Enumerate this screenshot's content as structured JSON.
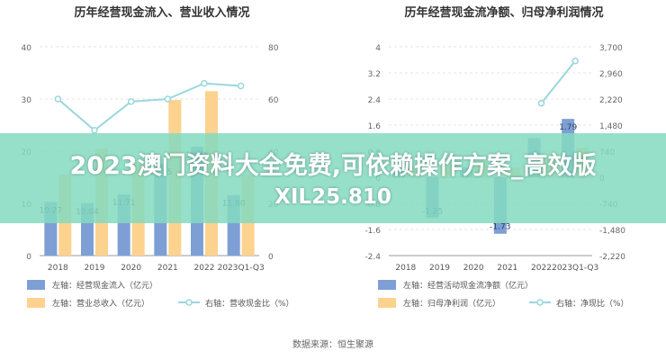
{
  "source_label": "数据来源：恒生聚源",
  "banner": {
    "line1": "2023澳门资料大全免费,可依赖操作方案_高效版",
    "line2": "XIL25.810"
  },
  "chart_data": [
    {
      "type": "bar",
      "title": "历年经营现金流入、营业收入情况",
      "categories": [
        "2018",
        "2019",
        "2020",
        "2021",
        "2022",
        "2023Q1-Q3"
      ],
      "left_axis": {
        "ylim": [
          0,
          40
        ],
        "ticks": [
          "0",
          "10",
          "20",
          "30",
          "40"
        ]
      },
      "right_axis": {
        "ylim": [
          0,
          80
        ],
        "ticks": [
          "0",
          "20",
          "40",
          "60",
          "80"
        ]
      },
      "series": [
        {
          "name": "左轴：经营现金流入（亿元）",
          "kind": "bar",
          "axis": "left",
          "color": "#7d9fd6",
          "values": [
            10.27,
            10.04,
            11.71,
            17.55,
            20.86,
            11.6
          ],
          "labels": [
            "10.27",
            "10.04",
            "11.71",
            "17.55",
            "20.86",
            "11.60"
          ]
        },
        {
          "name": "左轴：营业总收入（亿元）",
          "kind": "bar",
          "axis": "left",
          "color": "#fcd28e",
          "values": [
            15.5,
            20.5,
            17.5,
            29.8,
            31.5,
            15.5
          ]
        },
        {
          "name": "右轴：营收现金比（%）",
          "kind": "line",
          "axis": "right",
          "color": "#9ad7dc",
          "values": [
            60,
            48,
            59,
            60,
            66,
            65
          ]
        }
      ],
      "legend_position": "bottom"
    },
    {
      "type": "bar",
      "title": "历年经营现金流净额、归母净利润情况",
      "categories": [
        "2018",
        "2019",
        "2020",
        "2021",
        "2022",
        "2023Q1-Q3"
      ],
      "left_axis": {
        "ylim": [
          -2.4,
          4
        ],
        "ticks": [
          "-2.4",
          "-1.6",
          "-0.8",
          "0",
          "0.8",
          "1.6",
          "2.4",
          "3.2",
          "4"
        ]
      },
      "right_axis": {
        "ylim": [
          -2220,
          3700
        ],
        "ticks": [
          "-2,220",
          "-1,480",
          "-740",
          "0",
          "740",
          "1,480",
          "2,220",
          "2,960",
          "3,700"
        ]
      },
      "series": [
        {
          "name": "左轴：经营活动现金流净额（亿元）",
          "kind": "bar",
          "axis": "left",
          "color": "#7d9fd6",
          "values": [
            0.2,
            -1.25,
            0.3,
            -1.73,
            1.2,
            1.79
          ],
          "labels": [
            "",
            "-1.25",
            "",
            "-1.73",
            "",
            "1.79"
          ]
        },
        {
          "name": "左轴：归母净利润（亿元）",
          "kind": "bar",
          "axis": "left",
          "color": "#fcd28e",
          "values": [
            0.3,
            0.4,
            0.5,
            0.3,
            0.6,
            0.9
          ]
        },
        {
          "name": "右轴：净现比（%）",
          "kind": "line",
          "axis": "right",
          "color": "#9ad7dc",
          "values": [
            null,
            null,
            null,
            null,
            2100,
            3300
          ]
        }
      ],
      "legend_position": "bottom"
    }
  ]
}
